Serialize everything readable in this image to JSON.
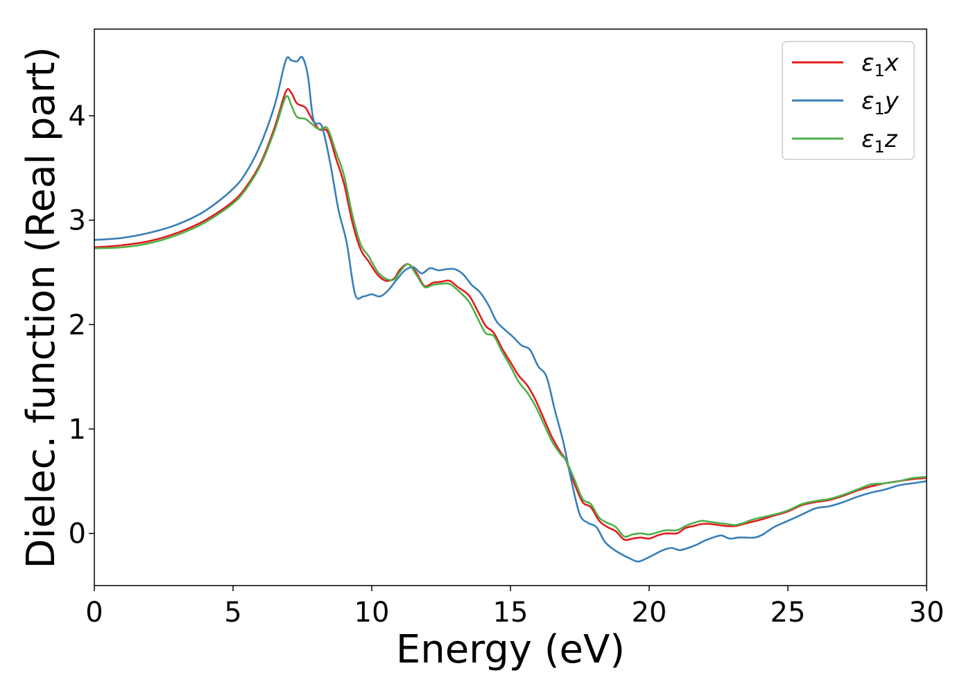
{
  "chart_data": {
    "type": "line",
    "title": "",
    "xlabel": "Energy (eV)",
    "ylabel": "Dielec. function (Real part)",
    "xlim": [
      0,
      30
    ],
    "ylim": [
      -0.5,
      4.83
    ],
    "xticks": [
      0,
      5,
      10,
      15,
      20,
      25,
      30
    ],
    "xtick_labels": [
      "0",
      "5",
      "10",
      "15",
      "20",
      "25",
      "30"
    ],
    "yticks": [
      0,
      1,
      2,
      3,
      4
    ],
    "ytick_labels": [
      "0",
      "1",
      "2",
      "3",
      "4"
    ],
    "grid": false,
    "legend_position": "top-right",
    "series": [
      {
        "name": "ε1x",
        "legend_base": "ε",
        "legend_sub": "1",
        "legend_var": "x",
        "color": "#e41a1c",
        "x": [
          0,
          1,
          2,
          3,
          4,
          5,
          5.5,
          6,
          6.5,
          6.9,
          7.1,
          7.3,
          7.6,
          7.8,
          8.1,
          8.4,
          8.7,
          9.0,
          9.3,
          9.6,
          9.9,
          10.2,
          10.5,
          10.8,
          11.0,
          11.3,
          11.6,
          11.9,
          12.2,
          12.5,
          12.8,
          13.1,
          13.5,
          13.8,
          14.1,
          14.4,
          14.7,
          15.0,
          15.3,
          15.6,
          15.9,
          16.2,
          16.5,
          16.8,
          17.0,
          17.3,
          17.6,
          17.9,
          18.2,
          18.5,
          18.8,
          19.1,
          19.4,
          19.7,
          20.0,
          20.3,
          20.6,
          21.0,
          21.3,
          21.6,
          21.9,
          22.2,
          22.5,
          22.8,
          23.1,
          23.4,
          23.7,
          24.0,
          24.5,
          25.0,
          25.5,
          26.0,
          26.5,
          27.0,
          27.5,
          28.0,
          28.5,
          29.0,
          29.5,
          30.0
        ],
        "y": [
          2.74,
          2.76,
          2.8,
          2.88,
          3.0,
          3.18,
          3.33,
          3.55,
          3.89,
          4.23,
          4.22,
          4.12,
          4.08,
          3.99,
          3.87,
          3.85,
          3.6,
          3.35,
          2.98,
          2.72,
          2.6,
          2.48,
          2.42,
          2.44,
          2.52,
          2.58,
          2.5,
          2.37,
          2.4,
          2.41,
          2.42,
          2.36,
          2.28,
          2.14,
          1.99,
          1.92,
          1.77,
          1.64,
          1.51,
          1.42,
          1.28,
          1.1,
          0.92,
          0.78,
          0.7,
          0.48,
          0.3,
          0.25,
          0.12,
          0.06,
          0.02,
          -0.06,
          -0.05,
          -0.04,
          -0.05,
          -0.02,
          0.0,
          0.0,
          0.05,
          0.07,
          0.09,
          0.09,
          0.08,
          0.07,
          0.07,
          0.09,
          0.11,
          0.13,
          0.17,
          0.21,
          0.27,
          0.3,
          0.32,
          0.36,
          0.41,
          0.45,
          0.48,
          0.5,
          0.52,
          0.53
        ]
      },
      {
        "name": "ε1y",
        "legend_base": "ε",
        "legend_sub": "1",
        "legend_var": "y",
        "color": "#377eb8",
        "x": [
          0,
          1,
          2,
          3,
          4,
          5,
          5.5,
          6,
          6.5,
          6.9,
          7.1,
          7.3,
          7.5,
          7.7,
          7.9,
          8.2,
          8.5,
          8.8,
          9.1,
          9.4,
          9.7,
          10.0,
          10.3,
          10.6,
          10.9,
          11.2,
          11.5,
          11.8,
          12.1,
          12.4,
          12.7,
          13.0,
          13.3,
          13.6,
          13.9,
          14.2,
          14.5,
          14.8,
          15.1,
          15.4,
          15.7,
          16.0,
          16.3,
          16.6,
          16.9,
          17.2,
          17.5,
          17.8,
          18.1,
          18.4,
          18.7,
          19.0,
          19.3,
          19.6,
          19.9,
          20.2,
          20.5,
          20.8,
          21.1,
          21.4,
          21.7,
          22.0,
          22.3,
          22.6,
          22.9,
          23.2,
          23.5,
          23.8,
          24.1,
          24.5,
          25.0,
          25.5,
          26.0,
          26.5,
          27.0,
          27.5,
          28.0,
          28.5,
          29.0,
          29.5,
          30.0
        ],
        "y": [
          2.81,
          2.83,
          2.88,
          2.96,
          3.09,
          3.3,
          3.47,
          3.73,
          4.1,
          4.53,
          4.53,
          4.52,
          4.56,
          4.38,
          3.96,
          3.9,
          3.55,
          3.1,
          2.78,
          2.29,
          2.27,
          2.29,
          2.27,
          2.33,
          2.43,
          2.52,
          2.55,
          2.49,
          2.54,
          2.52,
          2.53,
          2.53,
          2.48,
          2.38,
          2.31,
          2.19,
          2.03,
          1.95,
          1.88,
          1.8,
          1.76,
          1.6,
          1.5,
          1.18,
          0.88,
          0.5,
          0.18,
          0.1,
          0.06,
          -0.08,
          -0.15,
          -0.2,
          -0.24,
          -0.27,
          -0.24,
          -0.2,
          -0.16,
          -0.14,
          -0.16,
          -0.14,
          -0.11,
          -0.07,
          -0.04,
          -0.02,
          -0.05,
          -0.04,
          -0.04,
          -0.04,
          -0.01,
          0.06,
          0.12,
          0.18,
          0.24,
          0.26,
          0.3,
          0.35,
          0.39,
          0.42,
          0.46,
          0.48,
          0.5
        ]
      },
      {
        "name": "ε1z",
        "legend_base": "ε",
        "legend_sub": "1",
        "legend_var": "z",
        "color": "#4daf4a",
        "x": [
          0,
          1,
          2,
          3,
          4,
          5,
          5.5,
          6,
          6.5,
          6.9,
          7.1,
          7.3,
          7.6,
          7.8,
          8.1,
          8.4,
          8.7,
          9.0,
          9.3,
          9.6,
          9.9,
          10.2,
          10.5,
          10.8,
          11.0,
          11.3,
          11.6,
          11.9,
          12.2,
          12.5,
          12.8,
          13.1,
          13.5,
          13.8,
          14.1,
          14.4,
          14.7,
          15.0,
          15.3,
          15.6,
          15.9,
          16.2,
          16.5,
          16.8,
          17.0,
          17.3,
          17.6,
          17.9,
          18.2,
          18.5,
          18.8,
          19.1,
          19.4,
          19.7,
          20.0,
          20.3,
          20.6,
          21.0,
          21.3,
          21.6,
          21.9,
          22.2,
          22.5,
          22.8,
          23.1,
          23.4,
          23.7,
          24.0,
          24.5,
          25.0,
          25.5,
          26.0,
          26.5,
          27.0,
          27.5,
          28.0,
          28.5,
          29.0,
          29.5,
          30.0
        ],
        "y": [
          2.73,
          2.74,
          2.78,
          2.86,
          2.98,
          3.16,
          3.31,
          3.53,
          3.86,
          4.18,
          4.1,
          3.99,
          3.97,
          3.93,
          3.87,
          3.88,
          3.66,
          3.43,
          3.05,
          2.77,
          2.65,
          2.51,
          2.44,
          2.43,
          2.5,
          2.58,
          2.48,
          2.36,
          2.38,
          2.39,
          2.39,
          2.33,
          2.22,
          2.07,
          1.92,
          1.89,
          1.74,
          1.6,
          1.45,
          1.35,
          1.22,
          1.05,
          0.88,
          0.76,
          0.7,
          0.52,
          0.33,
          0.28,
          0.15,
          0.1,
          0.06,
          -0.03,
          -0.01,
          0.0,
          -0.01,
          0.01,
          0.03,
          0.03,
          0.07,
          0.1,
          0.12,
          0.11,
          0.1,
          0.09,
          0.08,
          0.1,
          0.13,
          0.15,
          0.18,
          0.22,
          0.28,
          0.31,
          0.33,
          0.37,
          0.42,
          0.47,
          0.48,
          0.5,
          0.53,
          0.54
        ]
      }
    ]
  }
}
